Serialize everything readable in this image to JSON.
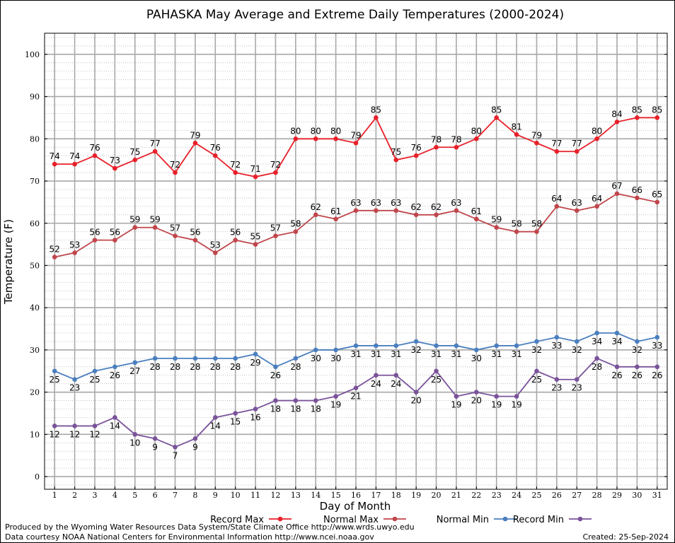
{
  "chart_data": {
    "type": "line",
    "title": "PAHASKA May Average and Extreme Daily Temperatures (2000-2024)",
    "xlabel": "Day of Month",
    "ylabel": "Temperature (F)",
    "ylim": [
      -3,
      105
    ],
    "yticks": [
      0,
      10,
      20,
      30,
      40,
      50,
      60,
      70,
      80,
      90,
      100
    ],
    "xlim": [
      0.5,
      31.5
    ],
    "categories": [
      "1",
      "2",
      "3",
      "4",
      "5",
      "6",
      "7",
      "8",
      "9",
      "10",
      "11",
      "12",
      "13",
      "14",
      "15",
      "16",
      "17",
      "18",
      "19",
      "20",
      "21",
      "22",
      "23",
      "24",
      "25",
      "26",
      "27",
      "28",
      "29",
      "30",
      "31"
    ],
    "grid": true,
    "legend_position": "bottom",
    "series": [
      {
        "name": "Record Max",
        "color": "#e8202a",
        "label_pos": "above",
        "values": [
          74,
          74,
          76,
          73,
          75,
          77,
          72,
          79,
          76,
          72,
          71,
          72,
          80,
          80,
          80,
          79,
          85,
          75,
          76,
          78,
          78,
          80,
          85,
          81,
          79,
          77,
          77,
          80,
          84,
          85,
          85
        ]
      },
      {
        "name": "Normal Max",
        "color": "#c0464c",
        "label_pos": "above",
        "values": [
          52,
          53,
          56,
          56,
          59,
          59,
          57,
          56,
          53,
          56,
          55,
          57,
          58,
          62,
          61,
          63,
          63,
          63,
          62,
          62,
          63,
          61,
          59,
          58,
          58,
          64,
          63,
          64,
          67,
          66,
          65
        ]
      },
      {
        "name": "Normal Min",
        "color": "#4a7fbf",
        "label_pos": "below",
        "values": [
          25,
          23,
          25,
          26,
          27,
          28,
          28,
          28,
          28,
          28,
          29,
          26,
          28,
          30,
          30,
          31,
          31,
          31,
          32,
          31,
          31,
          30,
          31,
          31,
          32,
          33,
          32,
          34,
          34,
          32,
          33
        ]
      },
      {
        "name": "Record Min",
        "color": "#7a539a",
        "label_pos": "below",
        "values": [
          12,
          12,
          12,
          14,
          10,
          9,
          7,
          9,
          14,
          15,
          16,
          18,
          18,
          18,
          19,
          21,
          24,
          24,
          20,
          25,
          19,
          20,
          19,
          19,
          25,
          23,
          23,
          28,
          26,
          26,
          26
        ]
      }
    ]
  },
  "footer": {
    "line1": "Produced by the Wyoming Water Resources Data System/State Climate Office http://www.wrds.uwyo.edu",
    "line2": "Data courtesy NOAA National Centers for Environmental Information http://www.ncei.noaa.gov",
    "created": "Created:  25-Sep-2024"
  }
}
